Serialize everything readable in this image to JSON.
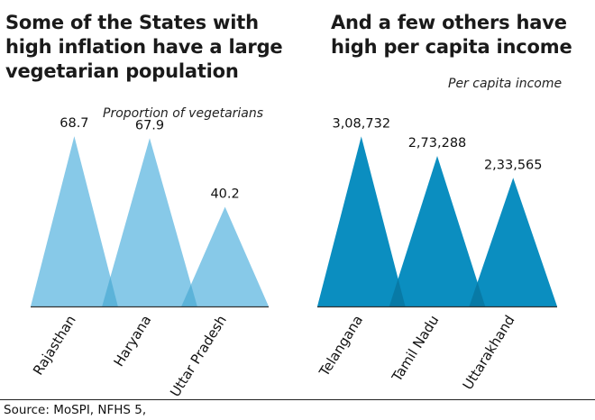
{
  "colors": {
    "left_fill": "#87c9e8",
    "left_overlap": "#5cb3d9",
    "right_fill": "#0b8ec0",
    "right_overlap": "#087aa6",
    "baseline": "#333333",
    "text": "#111111"
  },
  "source": "Source: MoSPI, NFHS 5,",
  "chart_data": [
    {
      "type": "bar",
      "shape": "overlapping-triangles",
      "title": "Some of the States with\nhigh inflation have a large\nvegetarian population",
      "subtitle": "Proportion of vegetarians",
      "categories": [
        "Rajasthan",
        "Haryana",
        "Uttar Pradesh"
      ],
      "values": [
        68.7,
        67.9,
        40.2
      ],
      "value_labels": [
        "68.7",
        "67.9",
        "40.2"
      ],
      "ylim": [
        0,
        80
      ]
    },
    {
      "type": "bar",
      "shape": "overlapping-triangles",
      "title": "And a few others have\nhigh per capita income",
      "subtitle": "Per capita income",
      "categories": [
        "Telangana",
        "Tamil Nadu",
        "Uttarakhand"
      ],
      "values": [
        308732,
        273288,
        233565
      ],
      "value_labels": [
        "3,08,732",
        "2,73,288",
        "2,33,565"
      ],
      "ylim": [
        0,
        360000
      ]
    }
  ]
}
